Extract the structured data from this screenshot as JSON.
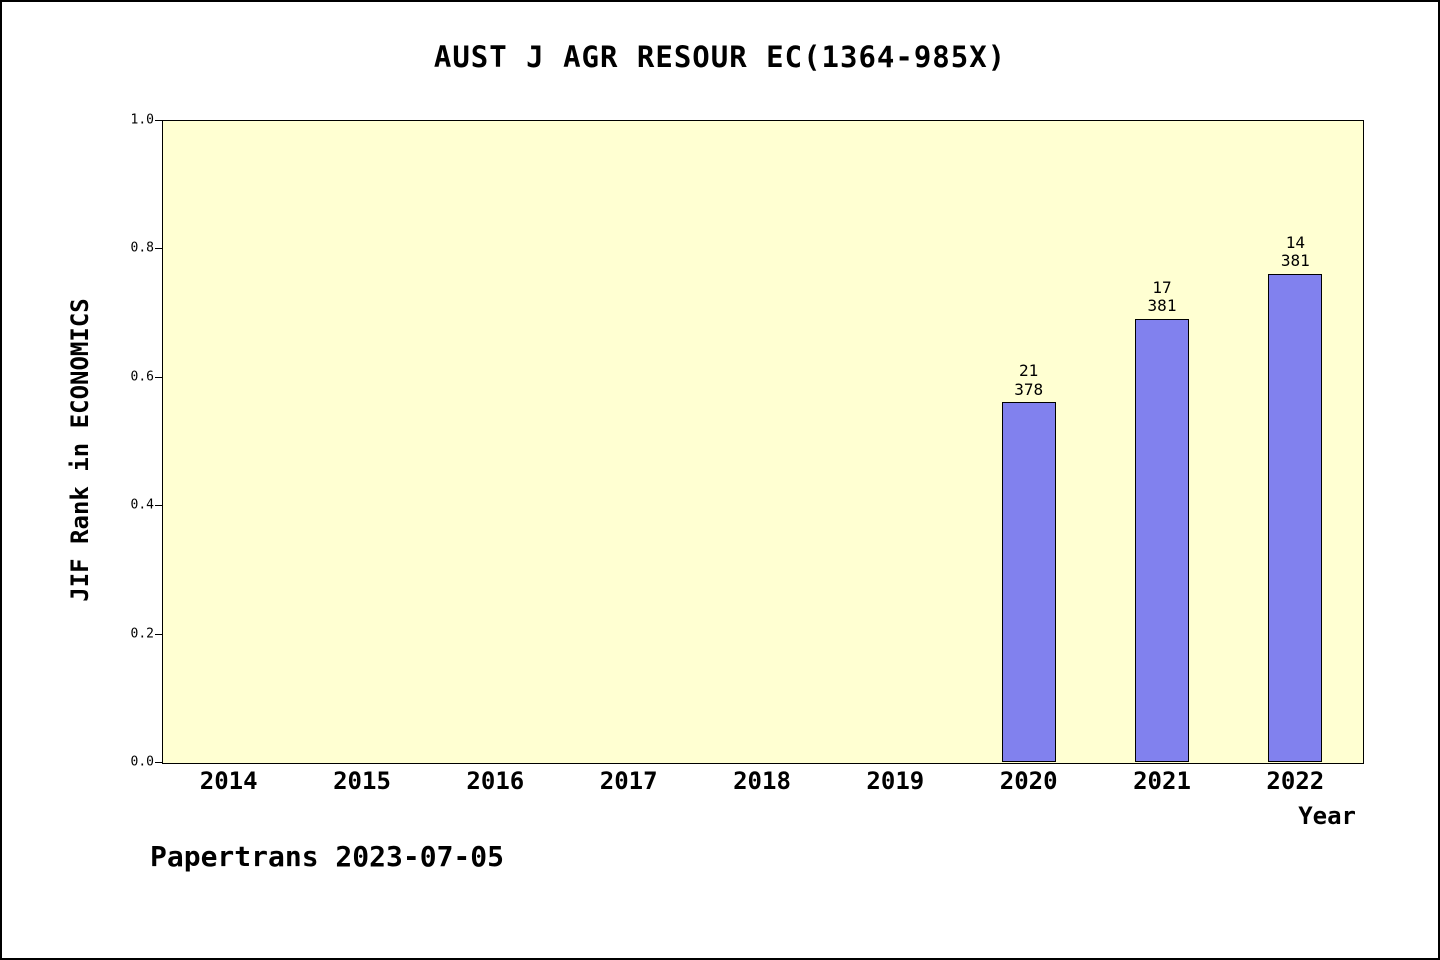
{
  "page": {
    "footer": "Papertrans 2023-07-05"
  },
  "chart_data": {
    "type": "bar",
    "title": "AUST J AGR RESOUR EC(1364-985X)",
    "xlabel": "Year",
    "ylabel": "JIF Rank in ECONOMICS",
    "categories": [
      "2014",
      "2015",
      "2016",
      "2017",
      "2018",
      "2019",
      "2020",
      "2021",
      "2022"
    ],
    "values": [
      null,
      null,
      null,
      null,
      null,
      null,
      0.56,
      0.69,
      0.76
    ],
    "bar_labels": [
      null,
      null,
      null,
      null,
      null,
      null,
      [
        "21",
        "378"
      ],
      [
        "17",
        "381"
      ],
      [
        "14",
        "381"
      ]
    ],
    "ylim": [
      0.0,
      1.0
    ],
    "yticks": [
      "0.0",
      "0.2",
      "0.4",
      "0.6",
      "0.8",
      "1.0"
    ],
    "grid": false,
    "legend": "none",
    "colors": {
      "bar_fill": "#8181ee",
      "bar_border": "#000000",
      "plot_background": "#ffffd2",
      "page_background": "#ffffff",
      "text": "#000000"
    }
  }
}
